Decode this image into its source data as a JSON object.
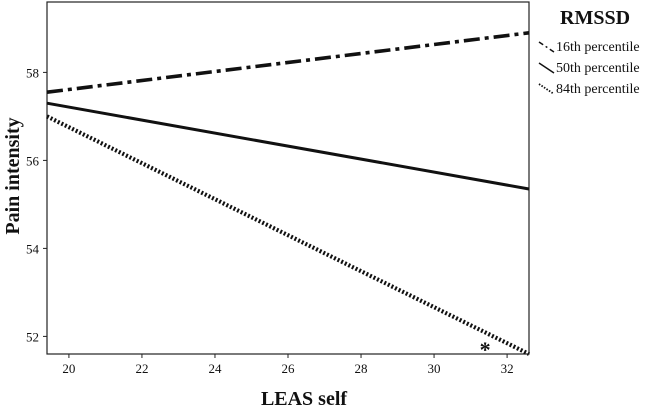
{
  "chart_data": {
    "type": "line",
    "title": "",
    "xlabel": "LEAS self",
    "ylabel": "Pain intensity",
    "xlim": [
      19.4,
      32.6
    ],
    "ylim": [
      51.6,
      59.6
    ],
    "xticks": [
      20,
      22,
      24,
      26,
      28,
      30,
      32
    ],
    "yticks": [
      52,
      54,
      56,
      58
    ],
    "grid": false,
    "legend": {
      "title": "RMSSD",
      "placement": "right"
    },
    "series": [
      {
        "name": "16th percentile",
        "style": "dash-dot",
        "x": [
          19.4,
          32.6
        ],
        "y": [
          57.55,
          58.9
        ]
      },
      {
        "name": "50th percentile",
        "style": "solid",
        "x": [
          19.4,
          32.6
        ],
        "y": [
          57.3,
          55.35
        ]
      },
      {
        "name": "84th percentile",
        "style": "dotted",
        "x": [
          19.4,
          32.6
        ],
        "y": [
          57.0,
          51.6
        ]
      }
    ],
    "annotations": [
      {
        "text": "*",
        "x": 31.4,
        "y": 51.8
      }
    ],
    "color": "#111111"
  }
}
